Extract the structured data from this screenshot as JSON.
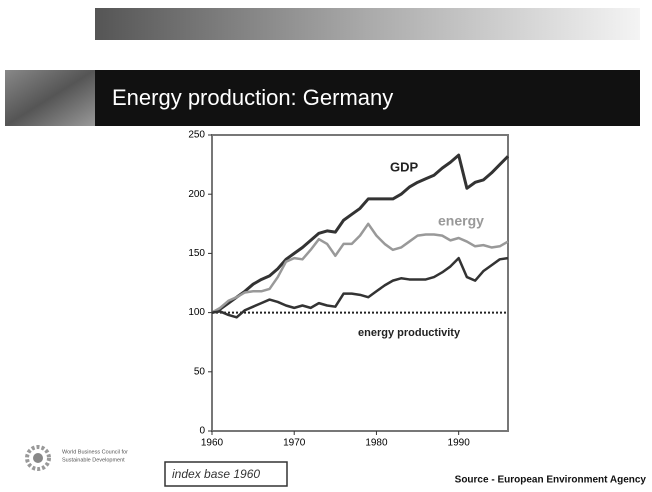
{
  "slide": {
    "title": "Energy production: Germany",
    "logo_text": [
      "World Business Council for",
      "Sustainable Development"
    ],
    "note": "index base 1960",
    "source": "Source - European Environment Agency"
  },
  "chart_data": {
    "type": "line",
    "x": [
      1960,
      1961,
      1962,
      1963,
      1964,
      1965,
      1966,
      1967,
      1968,
      1969,
      1970,
      1971,
      1972,
      1973,
      1974,
      1975,
      1976,
      1977,
      1978,
      1979,
      1980,
      1981,
      1982,
      1983,
      1984,
      1985,
      1986,
      1987,
      1988,
      1989,
      1990,
      1991,
      1992,
      1993,
      1994,
      1995,
      1996
    ],
    "series": [
      {
        "name": "GDP",
        "color": "#333333",
        "values": [
          100,
          103,
          108,
          113,
          118,
          124,
          128,
          131,
          137,
          145,
          150,
          155,
          161,
          167,
          169,
          168,
          178,
          183,
          188,
          196,
          196,
          196,
          196,
          200,
          206,
          210,
          213,
          216,
          222,
          227,
          233,
          205,
          210,
          212,
          218,
          225,
          232
        ]
      },
      {
        "name": "energy",
        "color": "#999999",
        "values": [
          100,
          104,
          110,
          113,
          117,
          118,
          118,
          120,
          130,
          143,
          146,
          145,
          153,
          162,
          158,
          148,
          158,
          158,
          165,
          175,
          165,
          158,
          153,
          155,
          160,
          165,
          166,
          166,
          165,
          161,
          163,
          160,
          156,
          157,
          155,
          156,
          160
        ]
      },
      {
        "name": "energy productivity",
        "color": "#333333",
        "values": [
          100,
          101,
          98,
          96,
          102,
          105,
          108,
          111,
          109,
          106,
          104,
          106,
          104,
          108,
          106,
          105,
          116,
          116,
          115,
          113,
          118,
          123,
          127,
          129,
          128,
          128,
          128,
          130,
          134,
          139,
          146,
          130,
          127,
          135,
          140,
          145,
          146
        ]
      }
    ],
    "reference_line": 100,
    "xlim": [
      1960,
      1996
    ],
    "xticks": [
      1960,
      1970,
      1980,
      1990
    ],
    "ylim": [
      0,
      250
    ],
    "yticks": [
      0,
      50,
      100,
      150,
      200,
      250
    ]
  }
}
